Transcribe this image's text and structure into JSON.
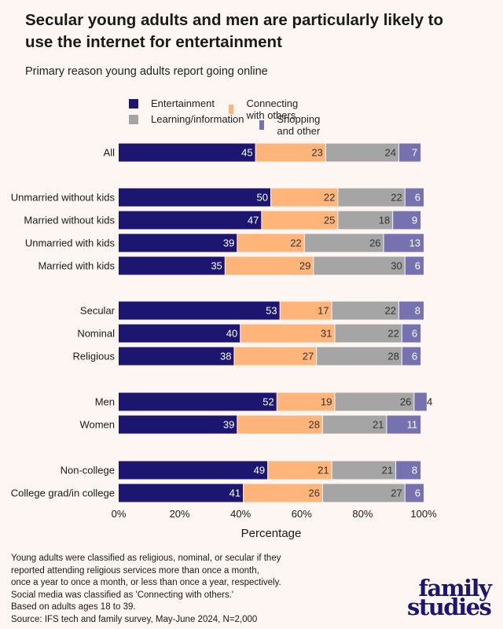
{
  "header": {
    "title": "Secular young adults and men are particularly likely to use the internet for entertainment",
    "subtitle": "Primary reason young adults report going online"
  },
  "colors": {
    "entertainment": "#1c1670",
    "connecting": "#ffb47a",
    "learning": "#a5a5a5",
    "shopping": "#7672b0",
    "background": "#fdf6f2"
  },
  "legend": [
    {
      "label": "Entertainment",
      "color": "#1c1670"
    },
    {
      "label": "Connecting with others",
      "color": "#ffb47a"
    },
    {
      "label": "Learning/information",
      "color": "#a5a5a5"
    },
    {
      "label": "Shopping and other",
      "color": "#7672b0"
    }
  ],
  "chart_data": {
    "type": "bar",
    "orientation": "horizontal",
    "stacked": true,
    "title": "Secular young adults and men are particularly likely to use the internet for entertainment",
    "subtitle": "Primary reason young adults report going online",
    "xlabel": "Percentage",
    "ylabel": "",
    "xlim": [
      0,
      100
    ],
    "xticks": [
      "0%",
      "20%",
      "40%",
      "60%",
      "80%",
      "100%"
    ],
    "grid": false,
    "legend_position": "top",
    "categories": [
      "All",
      "Unmarried without kids",
      "Married without kids",
      "Unmarried with kids",
      "Married with kids",
      "Secular",
      "Nominal",
      "Religious",
      "Men",
      "Women",
      "Non-college",
      "College grad/in college"
    ],
    "groups": [
      [
        "All"
      ],
      [
        "Unmarried without kids",
        "Married without kids",
        "Unmarried with kids",
        "Married with kids"
      ],
      [
        "Secular",
        "Nominal",
        "Religious"
      ],
      [
        "Men",
        "Women"
      ],
      [
        "Non-college",
        "College grad/in college"
      ]
    ],
    "series": [
      {
        "name": "Entertainment",
        "color": "#1c1670",
        "label_color": "#ffffff",
        "values": [
          45,
          50,
          47,
          39,
          35,
          53,
          40,
          38,
          52,
          39,
          49,
          41
        ]
      },
      {
        "name": "Connecting with others",
        "color": "#ffb47a",
        "label_color": "#333333",
        "values": [
          23,
          22,
          25,
          22,
          29,
          17,
          31,
          27,
          19,
          28,
          21,
          26
        ]
      },
      {
        "name": "Learning/information",
        "color": "#a5a5a5",
        "label_color": "#333333",
        "values": [
          24,
          22,
          18,
          26,
          30,
          22,
          22,
          28,
          26,
          21,
          21,
          27
        ]
      },
      {
        "name": "Shopping and other",
        "color": "#7672b0",
        "label_color": "#ffffff",
        "values": [
          7,
          6,
          9,
          13,
          6,
          8,
          6,
          6,
          4,
          11,
          8,
          6
        ]
      }
    ]
  },
  "footnote": "Young adults were classified as religious, nominal, or secular if they\nreported attending religious services more than once a month,\nonce a year to once a month, or less than once a year, respectively.\nSocial media was classified as 'Connecting with others.'\nBased on adults ages 18 to 39.\nSource: IFS tech and family survey, May-June 2024, N=2,000",
  "logo": {
    "line1": "family",
    "line2": "studies"
  }
}
